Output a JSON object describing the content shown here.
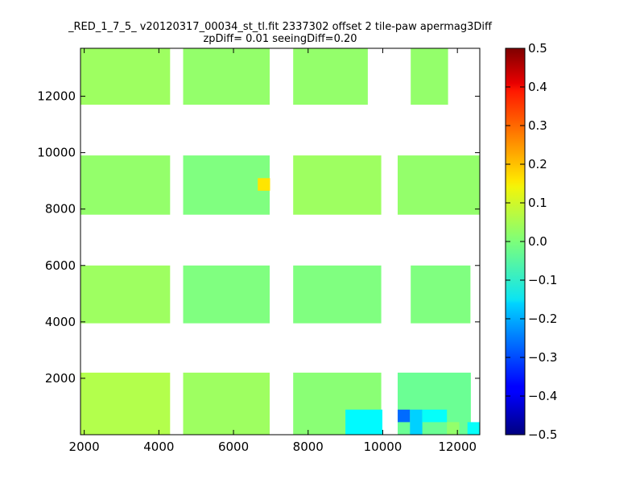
{
  "chart_data": {
    "type": "heatmap",
    "title_line1": "_RED_1_7_5_ v20120317_00034_st_tl.fit 2337302 offset 2 tile-paw apermag3Diff",
    "title_line2": "zpDiff= 0.01 seeingDiff=0.20",
    "xlim": [
      1900,
      12600
    ],
    "ylim": [
      0,
      13700
    ],
    "x_ticks": [
      2000,
      4000,
      6000,
      8000,
      10000,
      12000
    ],
    "x_tick_labels": [
      "2000",
      "4000",
      "6000",
      "8000",
      "10000",
      "12000"
    ],
    "y_ticks": [
      2000,
      4000,
      6000,
      8000,
      10000,
      12000
    ],
    "y_tick_labels": [
      "2000",
      "4000",
      "6000",
      "8000",
      "10000",
      "12000"
    ],
    "colorbar": {
      "colormap": "jet",
      "vmin": -0.5,
      "vmax": 0.5,
      "ticks": [
        0.5,
        0.4,
        0.3,
        0.2,
        0.1,
        0.0,
        -0.1,
        -0.2,
        -0.3,
        -0.4,
        -0.5
      ],
      "tick_labels": [
        "0.5",
        "0.4",
        "0.3",
        "0.2",
        "0.1",
        "0.0",
        "−0.1",
        "−0.2",
        "−0.3",
        "−0.4",
        "−0.5"
      ]
    },
    "cell_width": 330,
    "cell_height": 445,
    "grid_note": "values: apermag3Diff per cell, placed at data-unit x0,y0 with cell_width/cell_height",
    "cells": [
      {
        "x0": 1900,
        "y0": 0,
        "w": 2400,
        "h": 2200,
        "v": 0.05
      },
      {
        "x0": 4650,
        "y0": 0,
        "w": 2320,
        "h": 2200,
        "v": 0.03
      },
      {
        "x0": 7600,
        "y0": 0,
        "w": 2360,
        "h": 2200,
        "v": 0.01
      },
      {
        "x0": 10400,
        "y0": 0,
        "w": 1960,
        "h": 2200,
        "v": -0.02
      },
      {
        "x0": 1900,
        "y0": 3950,
        "w": 2400,
        "h": 2050,
        "v": 0.03
      },
      {
        "x0": 4650,
        "y0": 3950,
        "w": 2320,
        "h": 2050,
        "v": 0.0
      },
      {
        "x0": 7600,
        "y0": 3950,
        "w": 2360,
        "h": 2050,
        "v": 0.0
      },
      {
        "x0": 10750,
        "y0": 3950,
        "w": 1600,
        "h": 2050,
        "v": 0.0
      },
      {
        "x0": 1900,
        "y0": 7800,
        "w": 2400,
        "h": 2100,
        "v": 0.02
      },
      {
        "x0": 4650,
        "y0": 7800,
        "w": 2320,
        "h": 2100,
        "v": 0.0
      },
      {
        "x0": 7600,
        "y0": 7800,
        "w": 2360,
        "h": 2100,
        "v": 0.03
      },
      {
        "x0": 10400,
        "y0": 7800,
        "w": 2200,
        "h": 2100,
        "v": 0.02
      },
      {
        "x0": 1900,
        "y0": 11700,
        "w": 2400,
        "h": 2000,
        "v": 0.03
      },
      {
        "x0": 4650,
        "y0": 11700,
        "w": 2320,
        "h": 2000,
        "v": 0.02
      },
      {
        "x0": 7600,
        "y0": 11700,
        "w": 2000,
        "h": 2000,
        "v": 0.02
      },
      {
        "x0": 10750,
        "y0": 11700,
        "w": 1000,
        "h": 2000,
        "v": 0.02
      }
    ],
    "highlight_cells": [
      {
        "x0": 6650,
        "y0": 8650,
        "w": 330,
        "h": 445,
        "v": 0.15
      },
      {
        "x0": 9000,
        "y0": 0,
        "w": 990,
        "h": 890,
        "v": -0.13
      },
      {
        "x0": 10400,
        "y0": 445,
        "w": 330,
        "h": 445,
        "v": -0.27
      },
      {
        "x0": 10730,
        "y0": 0,
        "w": 330,
        "h": 890,
        "v": -0.17
      },
      {
        "x0": 11060,
        "y0": 445,
        "w": 660,
        "h": 445,
        "v": -0.12
      },
      {
        "x0": 11720,
        "y0": 0,
        "w": 330,
        "h": 445,
        "v": 0.02
      },
      {
        "x0": 12270,
        "y0": 0,
        "w": 330,
        "h": 445,
        "v": -0.12
      }
    ]
  }
}
